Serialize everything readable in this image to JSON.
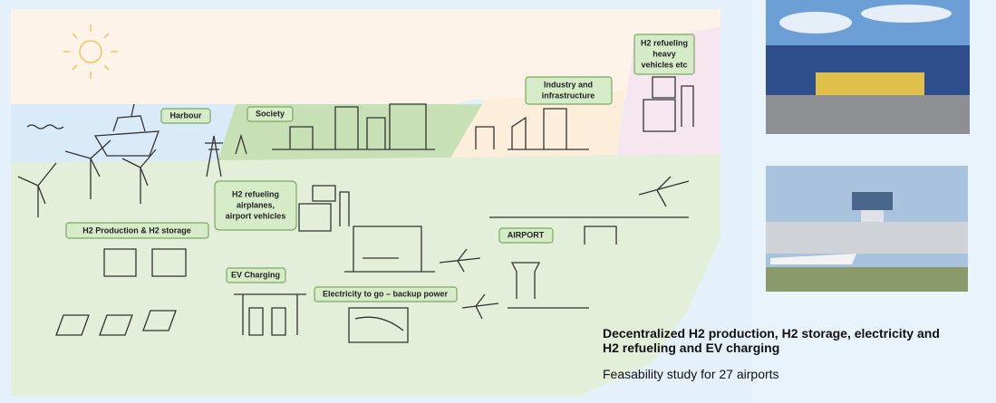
{
  "labels": {
    "harbour": "Harbour",
    "society": "Society",
    "industry": [
      "Industry and",
      "infrastructure"
    ],
    "heavy": [
      "H2 refueling",
      "heavy",
      "vehicles etc"
    ],
    "airplanes": [
      "H2 refueling",
      "airplanes,",
      "airport vehicles"
    ],
    "production": "H2 Production & H2 storage",
    "ev": "EV Charging",
    "electricity": "Electricity to go – backup power",
    "airport": "AIRPORT"
  },
  "caption": {
    "title": [
      "Decentralized H2 production, H2 storage, electricity and",
      "H2 refueling and EV charging"
    ],
    "subtitle": "Feasability study for 27 airports"
  }
}
